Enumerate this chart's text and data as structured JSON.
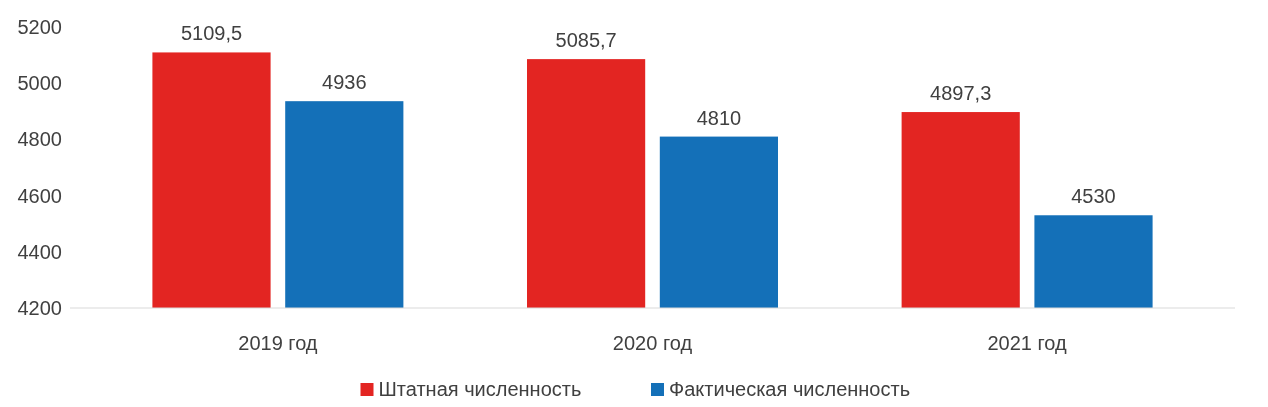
{
  "chart_data": {
    "type": "bar",
    "categories": [
      "2019 год",
      "2020 год",
      "2021 год"
    ],
    "series": [
      {
        "name": "Штатная численность",
        "color": "#e32522",
        "values": [
          5109.5,
          5085.7,
          4897.3
        ],
        "value_labels": [
          "5109,5",
          "5085,7",
          "4897,3"
        ]
      },
      {
        "name": "Фактическая численность",
        "color": "#1470b8",
        "values": [
          4936,
          4810,
          4530
        ],
        "value_labels": [
          "4936",
          "4810",
          "4530"
        ]
      }
    ],
    "ylim": [
      4200,
      5200
    ],
    "yticks": [
      4200,
      4400,
      4600,
      4800,
      5000,
      5200
    ],
    "grid": false,
    "legend": "bottom"
  }
}
